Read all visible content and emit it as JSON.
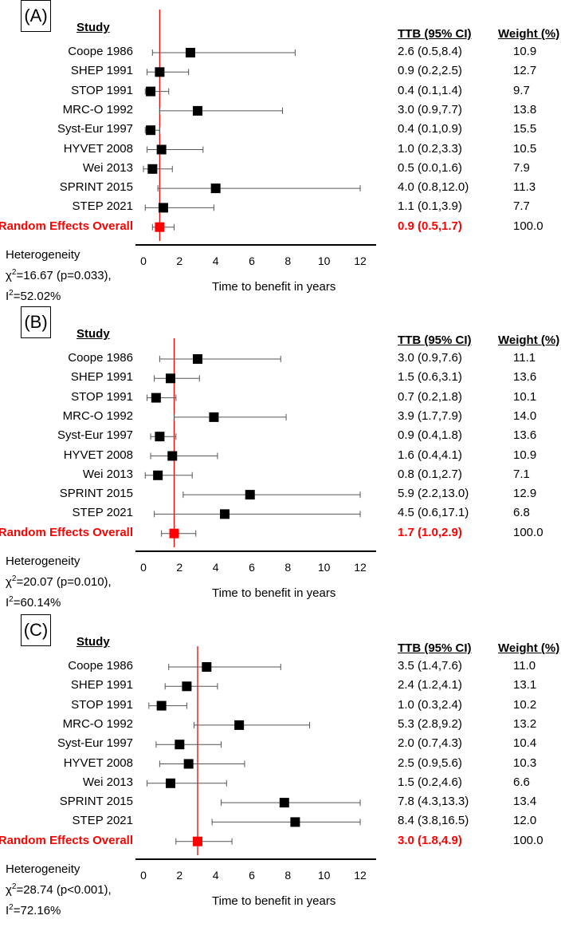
{
  "chart_data": [
    {
      "type": "forest",
      "panel_label": "(A)",
      "xlabel": "Time to benefit in years",
      "xlim": [
        0,
        12
      ],
      "xticks": [
        0,
        2,
        4,
        6,
        8,
        10,
        12
      ],
      "headers": {
        "study": "Study",
        "ttb": "TTB (95% CI)",
        "weight": "Weight (%)"
      },
      "studies": [
        {
          "name": "Coope 1986",
          "est": 2.6,
          "lo": 0.5,
          "hi": 8.4,
          "ttb_text": "2.6 (0.5,8.4)",
          "weight": "10.9"
        },
        {
          "name": "SHEP 1991",
          "est": 0.9,
          "lo": 0.2,
          "hi": 2.5,
          "ttb_text": "0.9 (0.2,2.5)",
          "weight": "12.7"
        },
        {
          "name": "STOP 1991",
          "est": 0.4,
          "lo": 0.1,
          "hi": 1.4,
          "ttb_text": "0.4 (0.1,1.4)",
          "weight": "9.7"
        },
        {
          "name": "MRC-O 1992",
          "est": 3.0,
          "lo": 0.9,
          "hi": 7.7,
          "ttb_text": "3.0 (0.9,7.7)",
          "weight": "13.8"
        },
        {
          "name": "Syst-Eur 1997",
          "est": 0.4,
          "lo": 0.1,
          "hi": 0.9,
          "ttb_text": "0.4 (0.1,0.9)",
          "weight": "15.5"
        },
        {
          "name": "HYVET 2008",
          "est": 1.0,
          "lo": 0.2,
          "hi": 3.3,
          "ttb_text": "1.0 (0.2,3.3)",
          "weight": "10.5"
        },
        {
          "name": "Wei 2013",
          "est": 0.5,
          "lo": 0.0,
          "hi": 1.6,
          "ttb_text": "0.5 (0.0,1.6)",
          "weight": "7.9"
        },
        {
          "name": "SPRINT 2015",
          "est": 4.0,
          "lo": 0.8,
          "hi": 12.0,
          "ttb_text": "4.0 (0.8,12.0)",
          "weight": "11.3"
        },
        {
          "name": "STEP 2021",
          "est": 1.1,
          "lo": 0.1,
          "hi": 3.9,
          "ttb_text": "1.1 (0.1,3.9)",
          "weight": "7.7"
        }
      ],
      "overall": {
        "name": "Random Effects Overall",
        "est": 0.9,
        "lo": 0.5,
        "hi": 1.7,
        "ttb_text": "0.9 (0.5,1.7)",
        "weight": "100.0"
      },
      "heterogeneity": {
        "title": "Heterogeneity",
        "chi_symbol": "χ",
        "chi_stat": "=16.67 (p=0.033),",
        "i_symbol": "I",
        "i_stat": "=52.02%"
      }
    },
    {
      "type": "forest",
      "panel_label": "(B)",
      "xlabel": "Time to benefit in years",
      "xlim": [
        0,
        12
      ],
      "xticks": [
        0,
        2,
        4,
        6,
        8,
        10,
        12
      ],
      "headers": {
        "study": "Study",
        "ttb": "TTB (95% CI)",
        "weight": "Weight (%)"
      },
      "studies": [
        {
          "name": "Coope 1986",
          "est": 3.0,
          "lo": 0.9,
          "hi": 7.6,
          "ttb_text": "3.0 (0.9,7.6)",
          "weight": "11.1"
        },
        {
          "name": "SHEP 1991",
          "est": 1.5,
          "lo": 0.6,
          "hi": 3.1,
          "ttb_text": "1.5 (0.6,3.1)",
          "weight": "13.6"
        },
        {
          "name": "STOP 1991",
          "est": 0.7,
          "lo": 0.2,
          "hi": 1.8,
          "ttb_text": "0.7 (0.2,1.8)",
          "weight": "10.1"
        },
        {
          "name": "MRC-O 1992",
          "est": 3.9,
          "lo": 1.7,
          "hi": 7.9,
          "ttb_text": "3.9 (1.7,7.9)",
          "weight": "14.0"
        },
        {
          "name": "Syst-Eur 1997",
          "est": 0.9,
          "lo": 0.4,
          "hi": 1.8,
          "ttb_text": "0.9 (0.4,1.8)",
          "weight": "13.6"
        },
        {
          "name": "HYVET 2008",
          "est": 1.6,
          "lo": 0.4,
          "hi": 4.1,
          "ttb_text": "1.6 (0.4,4.1)",
          "weight": "10.9"
        },
        {
          "name": "Wei 2013",
          "est": 0.8,
          "lo": 0.1,
          "hi": 2.7,
          "ttb_text": "0.8 (0.1,2.7)",
          "weight": "7.1"
        },
        {
          "name": "SPRINT 2015",
          "est": 5.9,
          "lo": 2.2,
          "hi": 13.0,
          "ttb_text": "5.9 (2.2,13.0)",
          "weight": "12.9"
        },
        {
          "name": "STEP 2021",
          "est": 4.5,
          "lo": 0.6,
          "hi": 17.1,
          "ttb_text": "4.5 (0.6,17.1)",
          "weight": "6.8"
        }
      ],
      "overall": {
        "name": "Random Effects Overall",
        "est": 1.7,
        "lo": 1.0,
        "hi": 2.9,
        "ttb_text": "1.7 (1.0,2.9)",
        "weight": "100.0"
      },
      "heterogeneity": {
        "title": "Heterogeneity",
        "chi_symbol": "χ",
        "chi_stat": "=20.07 (p=0.010),",
        "i_symbol": "I",
        "i_stat": "=60.14%"
      }
    },
    {
      "type": "forest",
      "panel_label": "(C)",
      "xlabel": "Time to benefit in years",
      "xlim": [
        0,
        12
      ],
      "xticks": [
        0,
        2,
        4,
        6,
        8,
        10,
        12
      ],
      "headers": {
        "study": "Study",
        "ttb": "TTB (95% CI)",
        "weight": "Weight (%)"
      },
      "studies": [
        {
          "name": "Coope 1986",
          "est": 3.5,
          "lo": 1.4,
          "hi": 7.6,
          "ttb_text": "3.5 (1.4,7.6)",
          "weight": "11.0"
        },
        {
          "name": "SHEP 1991",
          "est": 2.4,
          "lo": 1.2,
          "hi": 4.1,
          "ttb_text": "2.4 (1.2,4.1)",
          "weight": "13.1"
        },
        {
          "name": "STOP 1991",
          "est": 1.0,
          "lo": 0.3,
          "hi": 2.4,
          "ttb_text": "1.0 (0.3,2.4)",
          "weight": "10.2"
        },
        {
          "name": "MRC-O 1992",
          "est": 5.3,
          "lo": 2.8,
          "hi": 9.2,
          "ttb_text": "5.3 (2.8,9.2)",
          "weight": "13.2"
        },
        {
          "name": "Syst-Eur 1997",
          "est": 2.0,
          "lo": 0.7,
          "hi": 4.3,
          "ttb_text": "2.0 (0.7,4.3)",
          "weight": "10.4"
        },
        {
          "name": "HYVET 2008",
          "est": 2.5,
          "lo": 0.9,
          "hi": 5.6,
          "ttb_text": "2.5 (0.9,5.6)",
          "weight": "10.3"
        },
        {
          "name": "Wei 2013",
          "est": 1.5,
          "lo": 0.2,
          "hi": 4.6,
          "ttb_text": "1.5 (0.2,4.6)",
          "weight": "6.6"
        },
        {
          "name": "SPRINT 2015",
          "est": 7.8,
          "lo": 4.3,
          "hi": 13.3,
          "ttb_text": "7.8 (4.3,13.3)",
          "weight": "13.4"
        },
        {
          "name": "STEP 2021",
          "est": 8.4,
          "lo": 3.8,
          "hi": 16.5,
          "ttb_text": "8.4 (3.8,16.5)",
          "weight": "12.0"
        }
      ],
      "overall": {
        "name": "Random Effects Overall",
        "est": 3.0,
        "lo": 1.8,
        "hi": 4.9,
        "ttb_text": "3.0 (1.8,4.9)",
        "weight": "100.0"
      },
      "heterogeneity": {
        "title": "Heterogeneity",
        "chi_symbol": "χ",
        "chi_stat": "=28.74 (p<0.001),",
        "i_symbol": "I",
        "i_stat": "=72.16%"
      }
    }
  ]
}
